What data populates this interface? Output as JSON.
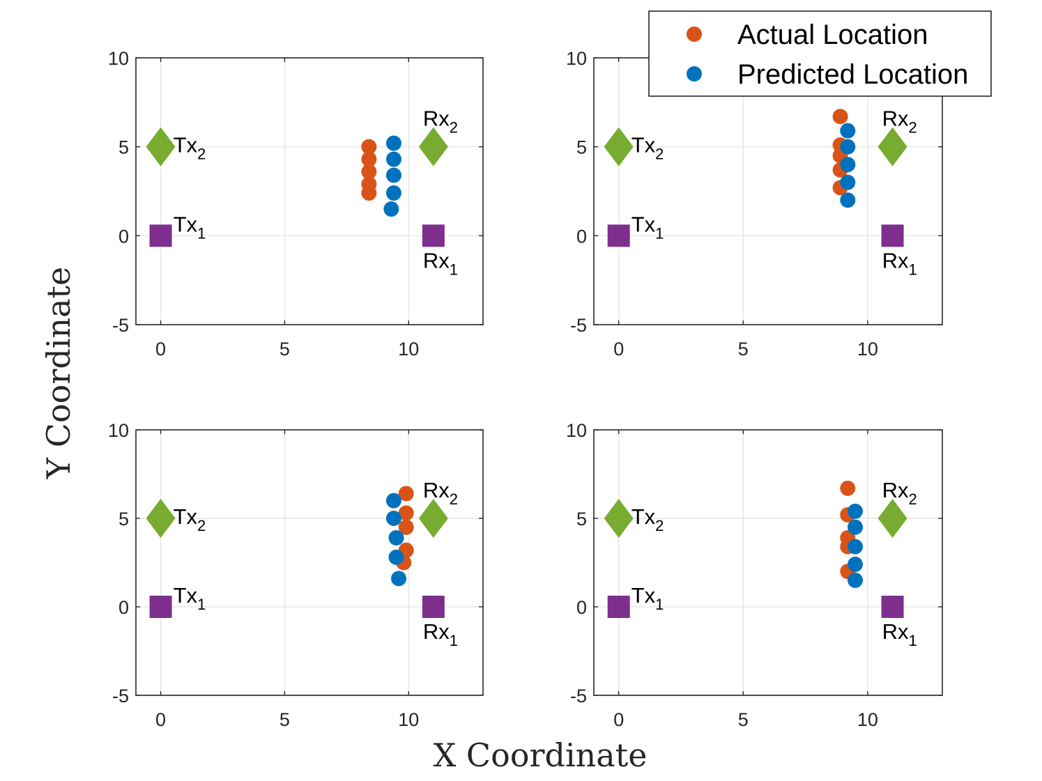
{
  "chart_data": {
    "type": "scatter",
    "xlabel": "X Coordinate",
    "ylabel": "Y Coordinate",
    "legend": {
      "location": "top-right",
      "entries": [
        {
          "label": "Actual Location",
          "color": "#D95319"
        },
        {
          "label": "Predicted Location",
          "color": "#0072BD"
        }
      ]
    },
    "colors": {
      "actual": "#D95319",
      "predicted": "#0072BD",
      "rx2_diamond": "#77AC30",
      "tx2_diamond": "#77AC30",
      "square": "#7E2F8E"
    },
    "xlim": [
      -1,
      13
    ],
    "ylim": [
      -5,
      10
    ],
    "xticks": [
      "0",
      "5",
      "10"
    ],
    "yticks": [
      "10",
      "5",
      "0",
      "-5"
    ],
    "grid": true,
    "devices": [
      {
        "name": "Tx",
        "sub": "1",
        "x": 0,
        "y": 0,
        "marker": "square",
        "label_side": "above-right"
      },
      {
        "name": "Tx",
        "sub": "2",
        "x": 0,
        "y": 5,
        "marker": "diamond",
        "label_side": "right"
      },
      {
        "name": "Rx",
        "sub": "1",
        "x": 11,
        "y": 0,
        "marker": "square",
        "label_side": "below-left"
      },
      {
        "name": "Rx",
        "sub": "2",
        "x": 11,
        "y": 5,
        "marker": "diamond",
        "label_side": "above-left"
      }
    ],
    "subplots": [
      {
        "actual": [
          [
            8.4,
            5.0
          ],
          [
            8.4,
            4.3
          ],
          [
            8.4,
            3.6
          ],
          [
            8.4,
            2.9
          ],
          [
            8.4,
            2.4
          ]
        ],
        "predicted": [
          [
            9.4,
            5.2
          ],
          [
            9.4,
            4.3
          ],
          [
            9.4,
            3.4
          ],
          [
            9.4,
            2.4
          ],
          [
            9.3,
            1.5
          ]
        ]
      },
      {
        "actual": [
          [
            8.9,
            6.7
          ],
          [
            8.9,
            5.1
          ],
          [
            8.9,
            4.5
          ],
          [
            8.9,
            3.7
          ],
          [
            8.9,
            2.7
          ]
        ],
        "predicted": [
          [
            9.2,
            5.9
          ],
          [
            9.2,
            5.0
          ],
          [
            9.2,
            4.0
          ],
          [
            9.2,
            3.0
          ],
          [
            9.2,
            2.0
          ]
        ]
      },
      {
        "actual": [
          [
            9.9,
            6.4
          ],
          [
            9.9,
            5.3
          ],
          [
            9.9,
            4.5
          ],
          [
            9.9,
            3.2
          ],
          [
            9.8,
            2.5
          ]
        ],
        "predicted": [
          [
            9.4,
            6.0
          ],
          [
            9.4,
            5.0
          ],
          [
            9.5,
            3.9
          ],
          [
            9.5,
            2.8
          ],
          [
            9.6,
            1.6
          ]
        ]
      },
      {
        "actual": [
          [
            9.2,
            6.7
          ],
          [
            9.2,
            5.2
          ],
          [
            9.2,
            3.9
          ],
          [
            9.2,
            3.4
          ],
          [
            9.2,
            2.0
          ]
        ],
        "predicted": [
          [
            9.5,
            5.4
          ],
          [
            9.5,
            4.5
          ],
          [
            9.5,
            3.4
          ],
          [
            9.5,
            2.4
          ],
          [
            9.5,
            1.5
          ]
        ]
      }
    ]
  }
}
